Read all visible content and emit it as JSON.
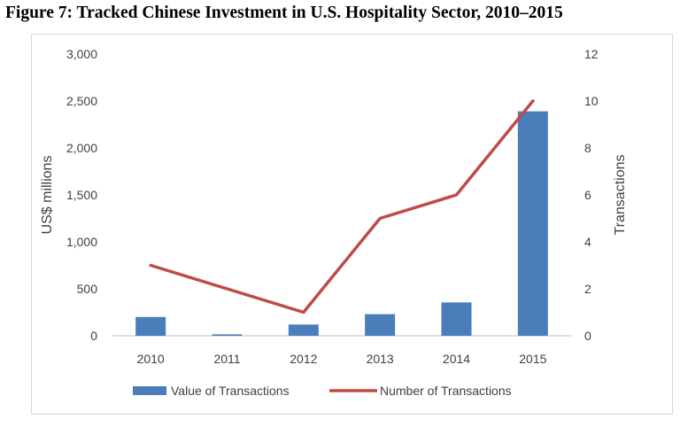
{
  "page": {
    "title": "Figure 7: Tracked Chinese Investment in U.S. Hospitality Sector, 2010–2015"
  },
  "chart_data": {
    "type": "bar",
    "categories": [
      "2010",
      "2011",
      "2012",
      "2013",
      "2014",
      "2015"
    ],
    "series": [
      {
        "name": "Value of Transactions",
        "type": "bar",
        "axis": "left",
        "color": "#4a7ebb",
        "values": [
          200,
          15,
          120,
          230,
          355,
          2390
        ]
      },
      {
        "name": "Number of Transactions",
        "type": "line",
        "axis": "right",
        "color": "#be4b48",
        "values": [
          3,
          2,
          1,
          5,
          6,
          10
        ]
      }
    ],
    "ylabel": "US$ millions",
    "y2label": "Transactions",
    "ylim": [
      0,
      3000
    ],
    "y2lim": [
      0,
      12
    ],
    "yticks": [
      "0",
      "500",
      "1,000",
      "1,500",
      "2,000",
      "2,500",
      "3,000"
    ],
    "y2ticks": [
      "0",
      "2",
      "4",
      "6",
      "8",
      "10",
      "12"
    ],
    "grid": false,
    "legend": "bottom"
  }
}
